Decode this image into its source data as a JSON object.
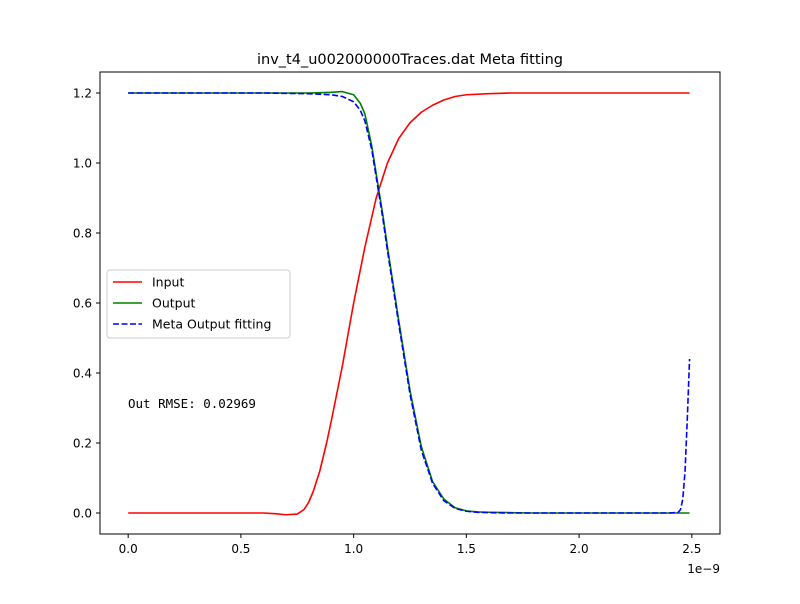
{
  "chart_data": {
    "type": "line",
    "title": "inv_t4_u002000000Traces.dat Meta fitting",
    "xlabel": "",
    "ylabel": "",
    "x_offset_label": "1e−9",
    "xlim": [
      -0.125,
      2.625
    ],
    "ylim": [
      -0.06,
      1.26
    ],
    "xticks": [
      0.0,
      0.5,
      1.0,
      1.5,
      2.0,
      2.5
    ],
    "xtick_labels": [
      "0.0",
      "0.5",
      "1.0",
      "1.5",
      "2.0",
      "2.5"
    ],
    "yticks": [
      0.0,
      0.2,
      0.4,
      0.6,
      0.8,
      1.0,
      1.2
    ],
    "ytick_labels": [
      "0.0",
      "0.2",
      "0.4",
      "0.6",
      "0.8",
      "1.0",
      "1.2"
    ],
    "grid": false,
    "legend_position": "center-left",
    "annotation": "Out RMSE: 0.02969",
    "series": [
      {
        "name": "Input",
        "color": "#ff0000",
        "style": "solid",
        "x": [
          0.0,
          0.1,
          0.2,
          0.3,
          0.4,
          0.5,
          0.6,
          0.65,
          0.7,
          0.75,
          0.78,
          0.8,
          0.82,
          0.85,
          0.88,
          0.9,
          0.95,
          1.0,
          1.05,
          1.1,
          1.15,
          1.2,
          1.25,
          1.3,
          1.35,
          1.4,
          1.45,
          1.5,
          1.6,
          1.7,
          1.8,
          1.9,
          2.0,
          2.1,
          2.2,
          2.3,
          2.4,
          2.49
        ],
        "y": [
          0.0,
          0.0,
          0.0,
          0.0,
          0.0,
          0.0,
          0.0,
          -0.002,
          -0.005,
          -0.003,
          0.01,
          0.03,
          0.06,
          0.12,
          0.2,
          0.26,
          0.42,
          0.6,
          0.76,
          0.9,
          1.0,
          1.07,
          1.115,
          1.145,
          1.165,
          1.18,
          1.19,
          1.195,
          1.198,
          1.2,
          1.2,
          1.2,
          1.2,
          1.2,
          1.2,
          1.2,
          1.2,
          1.2
        ]
      },
      {
        "name": "Output",
        "color": "#008000",
        "style": "solid",
        "x": [
          0.0,
          0.2,
          0.4,
          0.6,
          0.8,
          0.9,
          0.95,
          1.0,
          1.03,
          1.05,
          1.08,
          1.1,
          1.13,
          1.15,
          1.2,
          1.25,
          1.3,
          1.35,
          1.4,
          1.45,
          1.5,
          1.55,
          1.6,
          1.7,
          1.8,
          2.0,
          2.2,
          2.4,
          2.49
        ],
        "y": [
          1.2,
          1.2,
          1.2,
          1.2,
          1.2,
          1.202,
          1.204,
          1.195,
          1.17,
          1.14,
          1.05,
          0.97,
          0.85,
          0.76,
          0.55,
          0.35,
          0.19,
          0.09,
          0.04,
          0.015,
          0.006,
          0.003,
          0.002,
          0.001,
          0.0,
          0.0,
          0.0,
          0.0,
          0.0
        ]
      },
      {
        "name": "Meta Output fitting",
        "color": "#0000ff",
        "style": "dashed",
        "x": [
          0.0,
          0.2,
          0.4,
          0.6,
          0.8,
          0.9,
          0.95,
          1.0,
          1.03,
          1.05,
          1.08,
          1.1,
          1.13,
          1.15,
          1.2,
          1.25,
          1.3,
          1.35,
          1.4,
          1.45,
          1.5,
          1.55,
          1.6,
          1.7,
          1.8,
          2.0,
          2.2,
          2.4,
          2.44,
          2.45,
          2.46,
          2.47,
          2.48,
          2.49
        ],
        "y": [
          1.2,
          1.2,
          1.2,
          1.2,
          1.198,
          1.195,
          1.19,
          1.175,
          1.15,
          1.12,
          1.04,
          0.96,
          0.84,
          0.75,
          0.54,
          0.34,
          0.18,
          0.085,
          0.035,
          0.013,
          0.005,
          0.002,
          0.001,
          0.0,
          0.0,
          0.0,
          0.0,
          0.0,
          0.002,
          0.01,
          0.04,
          0.12,
          0.27,
          0.44
        ]
      }
    ]
  }
}
